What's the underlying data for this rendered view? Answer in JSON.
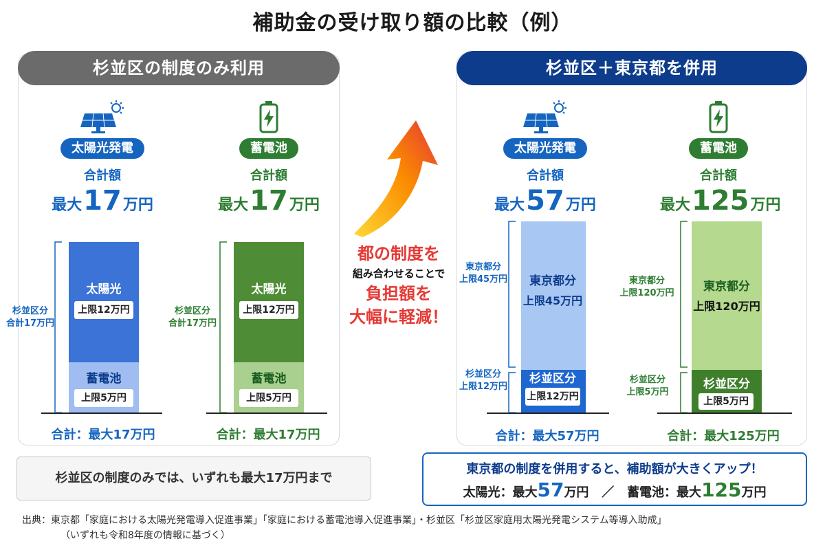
{
  "title": "補助金の受け取り額の比較（例）",
  "colors": {
    "blue": "#1565c0",
    "navy": "#0d3c8c",
    "green": "#2e7d32",
    "red": "#e53935",
    "gray": "#6b6b6b"
  },
  "left_panel": {
    "header": "杉並区の制度のみ利用",
    "columns": [
      {
        "category": "太陽光発電",
        "icon": "solar-panel-icon",
        "total_label": "合計額",
        "total_prefix": "最大",
        "total_number": "17",
        "total_unit": "万円",
        "side_label_line1": "杉並区分",
        "side_label_line2": "合計17万円",
        "top_segment_title": "太陽光",
        "top_segment_box": "上限12万円",
        "bottom_segment_title": "蓄電池",
        "bottom_segment_box": "上限5万円",
        "footer": "合計：最大17万円"
      },
      {
        "category": "蓄電池",
        "icon": "battery-icon",
        "total_label": "合計額",
        "total_prefix": "最大",
        "total_number": "17",
        "total_unit": "万円",
        "side_label_line1": "杉並区分",
        "side_label_line2": "合計17万円",
        "top_segment_title": "太陽光",
        "top_segment_box": "上限12万円",
        "bottom_segment_title": "蓄電池",
        "bottom_segment_box": "上限5万円",
        "footer": "合計：最大17万円"
      }
    ]
  },
  "right_panel": {
    "header": "杉並区＋東京都を併用",
    "columns": [
      {
        "category": "太陽光発電",
        "icon": "solar-panel-icon",
        "total_label": "合計額",
        "total_prefix": "最大",
        "total_number": "57",
        "total_unit": "万円",
        "side_top_line1": "東京都分",
        "side_top_line2": "上限45万円",
        "side_bottom_line1": "杉並区分",
        "side_bottom_line2": "上限12万円",
        "top_segment_title": "東京都分",
        "top_segment_box": "上限45万円",
        "bottom_segment_title": "杉並区分",
        "bottom_segment_box": "上限12万円",
        "footer": "合計：最大57万円"
      },
      {
        "category": "蓄電池",
        "icon": "battery-icon",
        "total_label": "合計額",
        "total_prefix": "最大",
        "total_number": "125",
        "total_unit": "万円",
        "side_top_line1": "東京都分",
        "side_top_line2": "上限120万円",
        "side_bottom_line1": "杉並区分",
        "side_bottom_line2": "上限5万円",
        "top_segment_title": "東京都分",
        "top_segment_box": "上限120万円",
        "bottom_segment_title": "杉並区分",
        "bottom_segment_box": "上限5万円",
        "footer": "合計：最大125万円"
      }
    ]
  },
  "callout": {
    "line1": "都の制度を",
    "line2": "組み合わせることで",
    "line3": "負担額を",
    "line4": "大幅に軽減！"
  },
  "note_left": "杉並区の制度のみでは、いずれも最大17万円まで",
  "note_right": {
    "line1": "東京都の制度を併用すると、補助額が大きくアップ！",
    "solar_label": "太陽光：最大",
    "solar_number": "57",
    "solar_unit": "万円",
    "separator": "／",
    "battery_label": "蓄電池：最大",
    "battery_number": "125",
    "battery_unit": "万円"
  },
  "source": {
    "line1": "出典：東京都「家庭における太陽光発電導入促進事業」「家庭における蓄電池導入促進事業」・杉並区「杉並区家庭用太陽光発電システム等導入助成」",
    "line2": "（いずれも令和8年度の情報に基づく）"
  },
  "chart_data": [
    {
      "type": "bar",
      "title": "杉並区の制度のみ利用 — 太陽光発電",
      "categories": [
        "太陽光発電"
      ],
      "unit": "万円",
      "series": [
        {
          "name": "太陽光",
          "values": [
            12
          ]
        },
        {
          "name": "蓄電池",
          "values": [
            5
          ]
        }
      ],
      "total": 17
    },
    {
      "type": "bar",
      "title": "杉並区の制度のみ利用 — 蓄電池",
      "categories": [
        "蓄電池"
      ],
      "unit": "万円",
      "series": [
        {
          "name": "太陽光",
          "values": [
            12
          ]
        },
        {
          "name": "蓄電池",
          "values": [
            5
          ]
        }
      ],
      "total": 17
    },
    {
      "type": "bar",
      "title": "杉並区＋東京都を併用 — 太陽光発電",
      "categories": [
        "太陽光発電"
      ],
      "unit": "万円",
      "series": [
        {
          "name": "東京都分",
          "values": [
            45
          ]
        },
        {
          "name": "杉並区分",
          "values": [
            12
          ]
        }
      ],
      "total": 57
    },
    {
      "type": "bar",
      "title": "杉並区＋東京都を併用 — 蓄電池",
      "categories": [
        "蓄電池"
      ],
      "unit": "万円",
      "series": [
        {
          "name": "東京都分",
          "values": [
            120
          ]
        },
        {
          "name": "杉並区分",
          "values": [
            5
          ]
        }
      ],
      "total": 125
    }
  ]
}
